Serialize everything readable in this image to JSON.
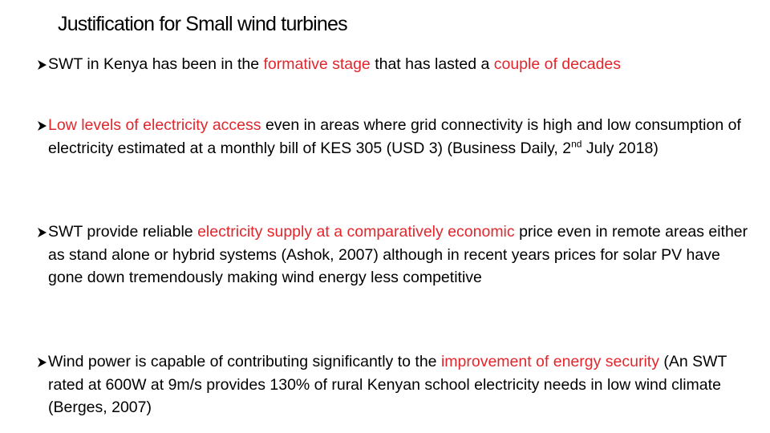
{
  "title": "Justification for Small wind turbines",
  "highlight_color": "#e3262c",
  "bullets": [
    {
      "runs": [
        {
          "text": "SWT in Kenya has been in the "
        },
        {
          "text": "formative stage",
          "highlight": true
        },
        {
          "text": " that has lasted a "
        },
        {
          "text": "couple of decades",
          "highlight": true
        }
      ]
    },
    {
      "runs": [
        {
          "text": "Low levels of electricity access",
          "highlight": true
        },
        {
          "text": " even in areas where grid connectivity is high and low consumption of electricity estimated at a monthly bill of KES 305 (USD 3) (Business Daily, 2"
        },
        {
          "text": "nd",
          "superscript": true
        },
        {
          "text": " July 2018)"
        }
      ]
    },
    {
      "runs": [
        {
          "text": "SWT provide reliable "
        },
        {
          "text": "electricity supply at a comparatively economic",
          "highlight": true
        },
        {
          "text": " price even in remote areas either as stand alone or hybrid systems (Ashok, 2007) although in recent years prices for solar PV have gone down tremendously making wind energy less competitive"
        }
      ]
    },
    {
      "runs": [
        {
          "text": "Wind power is capable of contributing significantly to the "
        },
        {
          "text": "improvement of energy security",
          "highlight": true
        },
        {
          "text": " (An SWT rated at 600W at 9m/s provides 130% of rural Kenyan school electricity needs in low wind climate (Berges, 2007)"
        }
      ]
    }
  ]
}
